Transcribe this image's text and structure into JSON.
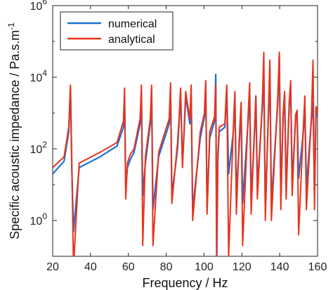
{
  "chart_data": {
    "type": "line",
    "xlabel": "Frequency / Hz",
    "ylabel": "Specific acoustic impedance / Pa.s.m",
    "ylabel_superscript": "-1",
    "xlim": [
      20,
      160
    ],
    "ylim": [
      0.1,
      1000000
    ],
    "yscale": "log",
    "x_ticks": [
      "20",
      "40",
      "60",
      "80",
      "100",
      "120",
      "140",
      "160"
    ],
    "y_ticks": [
      {
        "base": "10",
        "exp": "0",
        "value": 1
      },
      {
        "base": "10",
        "exp": "2",
        "value": 100
      },
      {
        "base": "10",
        "exp": "4",
        "value": 10000
      },
      {
        "base": "10",
        "exp": "6",
        "value": 1000000
      }
    ],
    "legend_position": "top-left",
    "grid": false,
    "series": [
      {
        "name": "numerical",
        "color": "#1f6fd6",
        "x": [
          20,
          26,
          28.5,
          29.4,
          30.1,
          31,
          34,
          45,
          54,
          57.4,
          58.0,
          58.6,
          59.5,
          61,
          63,
          66.2,
          66.9,
          67.6,
          69,
          71.6,
          72.3,
          73.0,
          76,
          81.6,
          82.3,
          83.0,
          86,
          86.8,
          87.6,
          88.6,
          89.5,
          90.3,
          92.5,
          93.2,
          94.0,
          98,
          100.2,
          100.9,
          101.6,
          103,
          105.6,
          106.2,
          106.7,
          107.3,
          108,
          111,
          112.0,
          113,
          115.5,
          116.3,
          117.1,
          118.5,
          119.6,
          120.4,
          123.3,
          124.1,
          124.9,
          126.7,
          127.4,
          128.2,
          130.8,
          131.6,
          132.4,
          134.0,
          134.8,
          135.6,
          139.0,
          139.8,
          140.6,
          141.8,
          142.6,
          143.4,
          145.0,
          145.8,
          146.6,
          148.4,
          149.2,
          150.0,
          152.5,
          153.3,
          154.1,
          156.8,
          157.6,
          158.4,
          159.2,
          160
        ],
        "values": [
          20,
          45,
          300,
          5000,
          30,
          0.5,
          30,
          60,
          120,
          400,
          3000,
          8,
          30,
          50,
          80,
          500,
          4000,
          5,
          40,
          500,
          4000,
          2,
          60,
          500,
          5000,
          5,
          100,
          500,
          4000,
          40,
          300,
          3000,
          500,
          3000,
          2,
          200,
          800,
          6000,
          2,
          200,
          600,
          12000,
          0.05,
          50,
          300,
          400,
          5000,
          20,
          300,
          3000,
          5,
          100,
          1500,
          3,
          600,
          5000,
          4,
          300,
          3000,
          8,
          1500,
          8000,
          2,
          800,
          20000,
          3,
          2000,
          40000,
          5,
          800,
          3000,
          8,
          1500,
          5000,
          10,
          700,
          1000,
          15,
          300,
          1500,
          8,
          700,
          2000,
          5,
          1200,
          800
        ]
      },
      {
        "name": "analytical",
        "color": "#e8341c",
        "x": [
          20,
          26,
          28.5,
          29.4,
          30.1,
          31,
          34,
          45,
          54,
          57.4,
          58.0,
          58.6,
          59.5,
          61,
          63,
          66.2,
          66.9,
          67.6,
          69,
          71.6,
          72.3,
          73.0,
          76,
          81.6,
          82.3,
          83.0,
          86,
          86.8,
          87.6,
          88.6,
          89.5,
          90.3,
          92.5,
          93.2,
          94.0,
          98,
          100.2,
          100.9,
          101.6,
          103,
          105.6,
          106.2,
          106.7,
          107.3,
          108,
          111,
          112.0,
          113,
          115.5,
          116.3,
          117.1,
          118.5,
          119.6,
          120.4,
          123.3,
          124.1,
          124.9,
          126.7,
          127.4,
          128.2,
          130.8,
          131.6,
          132.4,
          134.0,
          134.8,
          135.6,
          139.0,
          139.8,
          140.6,
          141.8,
          142.6,
          143.4,
          145.0,
          145.8,
          146.6,
          148.4,
          149.2,
          150.0,
          152.5,
          153.3,
          154.1,
          156.8,
          157.6,
          158.4,
          159.2,
          160
        ],
        "values": [
          30,
          60,
          400,
          6000,
          40,
          0.05,
          40,
          80,
          150,
          600,
          5000,
          4,
          40,
          70,
          100,
          700,
          6000,
          0.2,
          60,
          700,
          6000,
          0.2,
          80,
          700,
          7000,
          3,
          150,
          700,
          5000,
          30,
          400,
          4000,
          700,
          6000,
          1,
          300,
          1000,
          8000,
          1.5,
          300,
          800,
          6000,
          0.1,
          70,
          400,
          500,
          6000,
          0.1,
          400,
          4000,
          1.5,
          150,
          2000,
          0.2,
          800,
          7000,
          1.5,
          400,
          3000,
          4,
          2000,
          50000,
          1,
          1000,
          30000,
          1,
          3000,
          50000,
          2,
          1000,
          4000,
          4,
          2000,
          8000,
          5,
          900,
          1200,
          0.4,
          400,
          3000,
          2,
          900,
          30000,
          2,
          1500,
          1000
        ]
      }
    ]
  }
}
